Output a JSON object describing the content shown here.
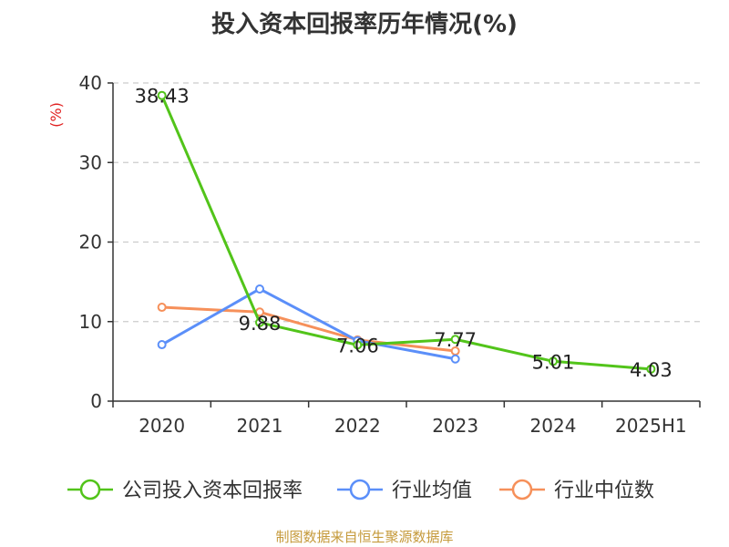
{
  "chart_data": {
    "type": "line",
    "title": "投入资本回报率历年情况(%)",
    "ylabel": "(%)",
    "xlabel": "",
    "categories": [
      "2020",
      "2021",
      "2022",
      "2023",
      "2024",
      "2025H1"
    ],
    "ylim": [
      0,
      40
    ],
    "yticks": [
      0,
      10,
      20,
      30,
      40
    ],
    "grid": true,
    "legend_position": "bottom",
    "series": [
      {
        "name": "公司投入资本回报率",
        "color": "#52c41a",
        "values": [
          38.43,
          9.88,
          7.06,
          7.77,
          5.01,
          4.03
        ],
        "labels": [
          "38.43",
          "9.88",
          "7.06",
          "7.77",
          "5.01",
          "4.03"
        ]
      },
      {
        "name": "行业均值",
        "color": "#5b8ff9",
        "values": [
          7.1,
          14.1,
          7.6,
          5.3,
          null,
          null
        ]
      },
      {
        "name": "行业中位数",
        "color": "#f6905a",
        "values": [
          11.8,
          11.2,
          7.7,
          6.3,
          null,
          null
        ]
      }
    ]
  },
  "source": "制图数据来自恒生聚源数据库"
}
